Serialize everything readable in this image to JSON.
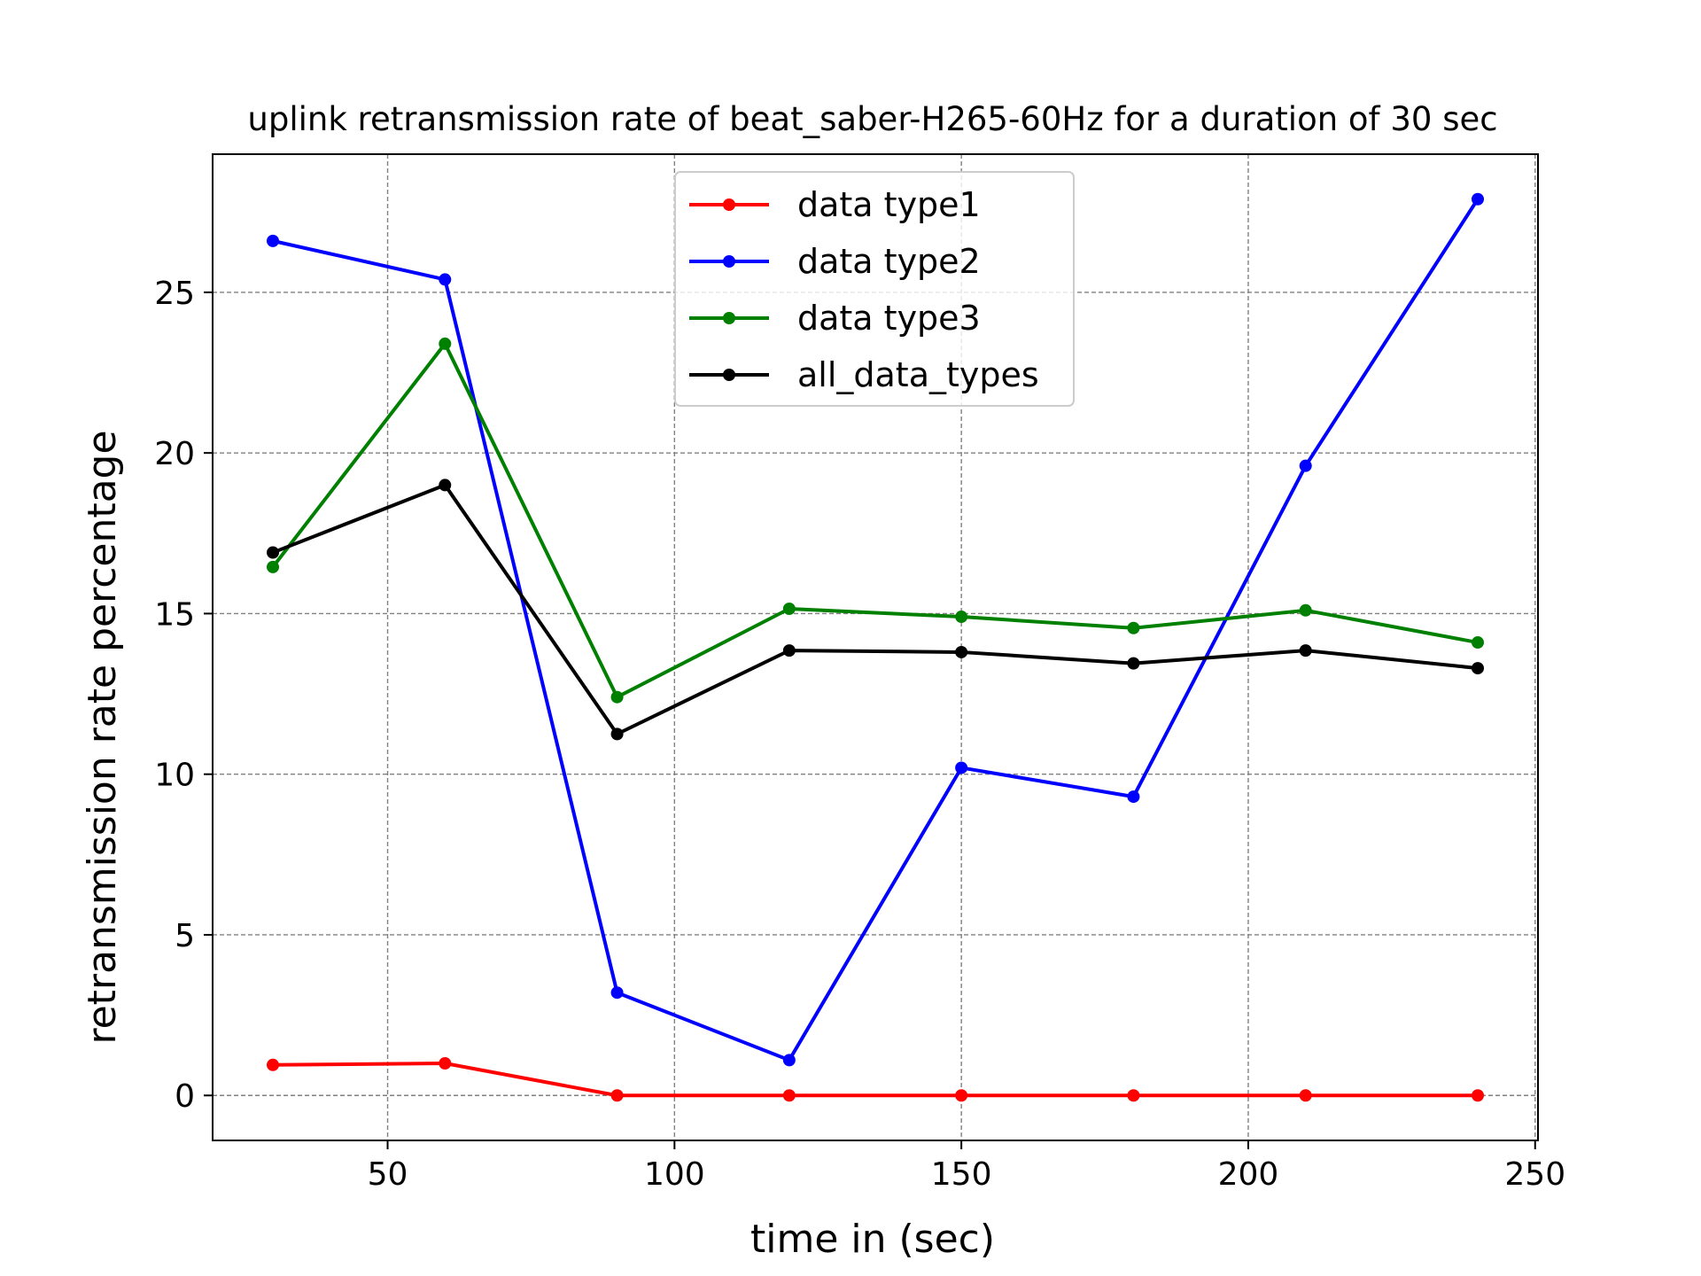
{
  "chart_data": {
    "type": "line",
    "title": "uplink retransmission rate of beat_saber-H265-60Hz for a duration of 30 sec",
    "xlabel": "time in (sec)",
    "ylabel": "retransmission rate percentage",
    "x": [
      30,
      60,
      90,
      120,
      150,
      180,
      210,
      240
    ],
    "xlim": [
      19.5,
      250.5
    ],
    "ylim": [
      -1.4,
      29.3
    ],
    "xticks": [
      50,
      100,
      150,
      200,
      250
    ],
    "yticks": [
      0,
      5,
      10,
      15,
      20,
      25
    ],
    "grid": true,
    "legend_position": "upper center",
    "series": [
      {
        "name": "data type1",
        "color": "#ff0000",
        "values": [
          0.95,
          1.0,
          0.0,
          0.0,
          0.0,
          0.0,
          0.0,
          0.0
        ]
      },
      {
        "name": "data type2",
        "color": "#0000ff",
        "values": [
          26.6,
          25.4,
          3.2,
          1.1,
          10.2,
          9.3,
          19.6,
          27.9
        ]
      },
      {
        "name": "data type3",
        "color": "#008000",
        "values": [
          16.45,
          23.4,
          12.4,
          15.15,
          14.9,
          14.55,
          15.1,
          14.1
        ]
      },
      {
        "name": "all_data_types",
        "color": "#000000",
        "values": [
          16.9,
          19.0,
          11.25,
          13.85,
          13.8,
          13.45,
          13.85,
          13.3
        ]
      }
    ]
  }
}
